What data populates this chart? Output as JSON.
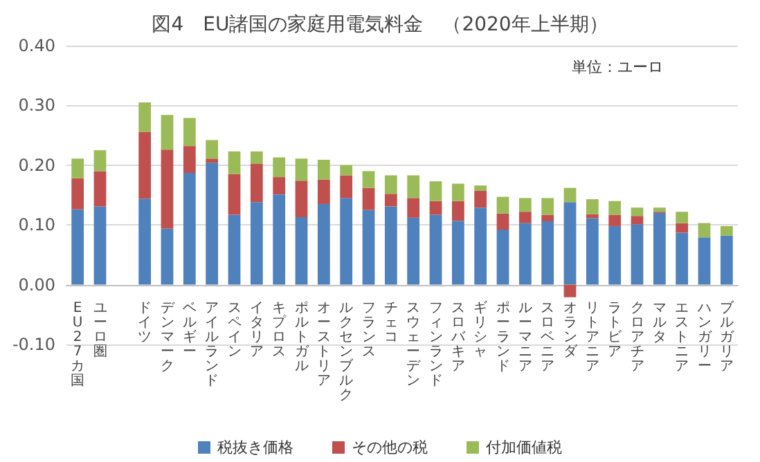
{
  "chart_data": {
    "type": "bar",
    "stacked": true,
    "title": "図4　EU諸国の家庭用電気料金　（2020年上半期）",
    "annotations": [
      "単位：ユーロ"
    ],
    "categories": [
      "EU27カ国",
      "ユーロ圏",
      null,
      "ドイツ",
      "デンマーク",
      "ベルギー",
      "アイルランド",
      "スペイン",
      "イタリア",
      "キプロス",
      "ポルトガル",
      "オーストリア",
      "ルクセンブルク",
      "フランス",
      "チェコ",
      "スウェーデン",
      "フィンランド",
      "スロバキア",
      "ギリシャ",
      "ポーランド",
      "ルーマニア",
      "スロベニア",
      "オランダ",
      "リトアニア",
      "ラトビア",
      "クロアチア",
      "マルタ",
      "エストニア",
      "ハンガリー",
      "ブルガリア"
    ],
    "series": [
      {
        "name": "税抜き価格",
        "color": "#4f81bd",
        "values": [
          0.126,
          0.131,
          null,
          0.144,
          0.094,
          0.187,
          0.204,
          0.117,
          0.138,
          0.151,
          0.113,
          0.135,
          0.145,
          0.125,
          0.131,
          0.112,
          0.117,
          0.107,
          0.129,
          0.092,
          0.103,
          0.106,
          0.138,
          0.111,
          0.098,
          0.101,
          0.12,
          0.087,
          0.079,
          0.082
        ]
      },
      {
        "name": "その他の税",
        "color": "#c0504d",
        "values": [
          0.052,
          0.059,
          null,
          0.112,
          0.132,
          0.045,
          0.007,
          0.068,
          0.064,
          0.029,
          0.061,
          0.041,
          0.038,
          0.037,
          0.021,
          0.033,
          0.023,
          0.033,
          0.028,
          0.027,
          0.019,
          0.011,
          -0.021,
          0.007,
          0.019,
          0.014,
          0.002,
          0.016,
          null,
          null
        ]
      },
      {
        "name": "付加価値税",
        "color": "#9bbb59",
        "values": [
          0.033,
          0.035,
          null,
          0.049,
          0.058,
          0.047,
          0.031,
          0.038,
          0.021,
          0.033,
          0.037,
          0.033,
          0.017,
          0.028,
          0.031,
          0.038,
          0.033,
          0.029,
          0.009,
          0.028,
          0.023,
          0.028,
          0.024,
          0.025,
          0.023,
          0.014,
          0.007,
          0.019,
          0.024,
          0.016
        ]
      }
    ],
    "ylim": [
      -0.1,
      0.4
    ],
    "yticks": [
      {
        "value": -0.1,
        "label": "-0.10"
      },
      {
        "value": 0,
        "label": "0.00"
      },
      {
        "value": 0.1,
        "label": "0.10"
      },
      {
        "value": 0.2,
        "label": "0.20"
      },
      {
        "value": 0.3,
        "label": "0.30"
      },
      {
        "value": 0.4,
        "label": "0.40"
      }
    ],
    "grid": "y",
    "legend": "bottom"
  }
}
